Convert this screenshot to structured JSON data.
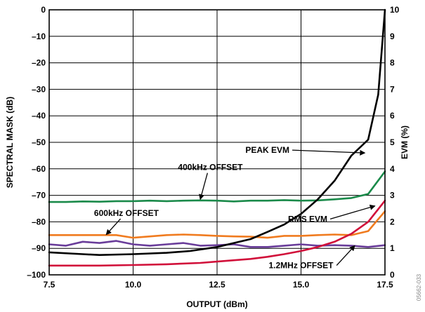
{
  "chart_data": {
    "type": "line",
    "figure_id": "05662-033",
    "xlabel": "OUTPUT (dBm)",
    "ylabel_left": "SPECTRAL MASK (dB)",
    "ylabel_right": "EVM (%)",
    "xlim": [
      7.5,
      17.5
    ],
    "ylim_left": [
      -100,
      0
    ],
    "ylim_right": [
      0,
      10
    ],
    "x_ticks": [
      "7.5",
      "10.0",
      "12.5",
      "15.0",
      "17.5"
    ],
    "y_left_ticks": [
      "0",
      "–10",
      "–20",
      "–30",
      "–40",
      "–50",
      "–60",
      "–70",
      "–80",
      "–90",
      "–100"
    ],
    "y_right_ticks": [
      "10",
      "9",
      "8",
      "7",
      "6",
      "5",
      "4",
      "3",
      "2",
      "1",
      "0"
    ],
    "grid": true,
    "series": [
      {
        "name": "400kHz OFFSET",
        "axis": "left",
        "color": "#1a8a4a",
        "x": [
          7.5,
          8.0,
          8.5,
          9.0,
          9.5,
          10.0,
          10.5,
          11.0,
          11.5,
          12.0,
          12.5,
          13.0,
          13.5,
          14.0,
          14.5,
          15.0,
          15.5,
          16.0,
          16.5,
          17.0,
          17.5
        ],
        "y": [
          -72.5,
          -72.5,
          -72.3,
          -72.4,
          -72.2,
          -72.2,
          -72.0,
          -72.2,
          -72.0,
          -71.9,
          -72.0,
          -72.3,
          -72.0,
          -72.0,
          -71.8,
          -72.0,
          -71.9,
          -71.5,
          -71.0,
          -69.5,
          -61.0
        ]
      },
      {
        "name": "600kHz OFFSET",
        "axis": "left",
        "color": "#f07b1f",
        "x": [
          7.5,
          8.0,
          8.5,
          9.0,
          9.5,
          10.0,
          10.5,
          11.0,
          11.5,
          12.0,
          12.5,
          13.0,
          13.5,
          14.0,
          14.5,
          15.0,
          15.5,
          16.0,
          16.5,
          17.0,
          17.5
        ],
        "y": [
          -85.0,
          -85.0,
          -85.0,
          -85.0,
          -85.0,
          -86.0,
          -85.5,
          -85.0,
          -84.8,
          -85.0,
          -85.3,
          -85.5,
          -85.6,
          -86.0,
          -85.3,
          -85.3,
          -85.0,
          -84.8,
          -85.0,
          -83.5,
          -76.0
        ]
      },
      {
        "name": "1.2MHz OFFSET",
        "axis": "left",
        "color": "#6a3d9a",
        "x": [
          7.5,
          8.0,
          8.5,
          9.0,
          9.5,
          10.0,
          10.5,
          11.0,
          11.5,
          12.0,
          12.5,
          13.0,
          13.5,
          14.0,
          14.5,
          15.0,
          15.5,
          16.0,
          16.5,
          17.0,
          17.5
        ],
        "y": [
          -88.5,
          -89.0,
          -87.5,
          -88.0,
          -87.2,
          -88.5,
          -89.0,
          -88.5,
          -88.0,
          -89.0,
          -88.8,
          -88.5,
          -89.5,
          -89.5,
          -89.0,
          -88.5,
          -89.0,
          -88.8,
          -89.0,
          -89.5,
          -88.8
        ]
      },
      {
        "name": "PEAK EVM",
        "axis": "right",
        "color": "#000000",
        "x": [
          7.5,
          8.5,
          9.0,
          10.0,
          11.0,
          11.7,
          12.5,
          13.0,
          13.5,
          14.0,
          14.5,
          15.0,
          15.5,
          16.0,
          16.5,
          17.0,
          17.3,
          17.5
        ],
        "y": [
          0.85,
          0.78,
          0.75,
          0.78,
          0.83,
          0.9,
          1.05,
          1.2,
          1.35,
          1.62,
          1.9,
          2.3,
          2.85,
          3.55,
          4.5,
          5.1,
          6.8,
          10.0
        ]
      },
      {
        "name": "RMS EVM",
        "axis": "right",
        "color": "#d1103a",
        "x": [
          7.5,
          8.5,
          9.0,
          10.0,
          11.0,
          12.0,
          12.5,
          13.0,
          13.5,
          14.0,
          14.5,
          15.0,
          15.5,
          16.0,
          16.5,
          17.0,
          17.5
        ],
        "y": [
          0.35,
          0.35,
          0.35,
          0.37,
          0.4,
          0.45,
          0.5,
          0.55,
          0.6,
          0.68,
          0.78,
          0.9,
          1.05,
          1.25,
          1.55,
          2.0,
          2.8
        ]
      }
    ],
    "annotations": [
      {
        "label": "400kHz OFFSET",
        "x": 12.3,
        "y": -60.5,
        "axis": "left",
        "arrow_to": {
          "x": 12.0,
          "y": -71.5
        }
      },
      {
        "label": "600kHz OFFSET",
        "x": 9.8,
        "y": -77.8,
        "axis": "left",
        "arrow_to": {
          "x": 9.2,
          "y": -84.8
        }
      },
      {
        "label": "PEAK EVM",
        "x": 14.0,
        "y": 4.6,
        "axis": "right",
        "arrow_to": {
          "x": 16.9,
          "y": 4.6
        }
      },
      {
        "label": "RMS EVM",
        "x": 15.2,
        "y": 2.0,
        "axis": "right",
        "arrow_to": {
          "x": 17.2,
          "y": 2.6
        }
      },
      {
        "label": "1.2MHz OFFSET",
        "x": 15.0,
        "y": 0.25,
        "axis": "right",
        "arrow_to": {
          "x": 16.6,
          "y": 1.1
        }
      }
    ]
  }
}
